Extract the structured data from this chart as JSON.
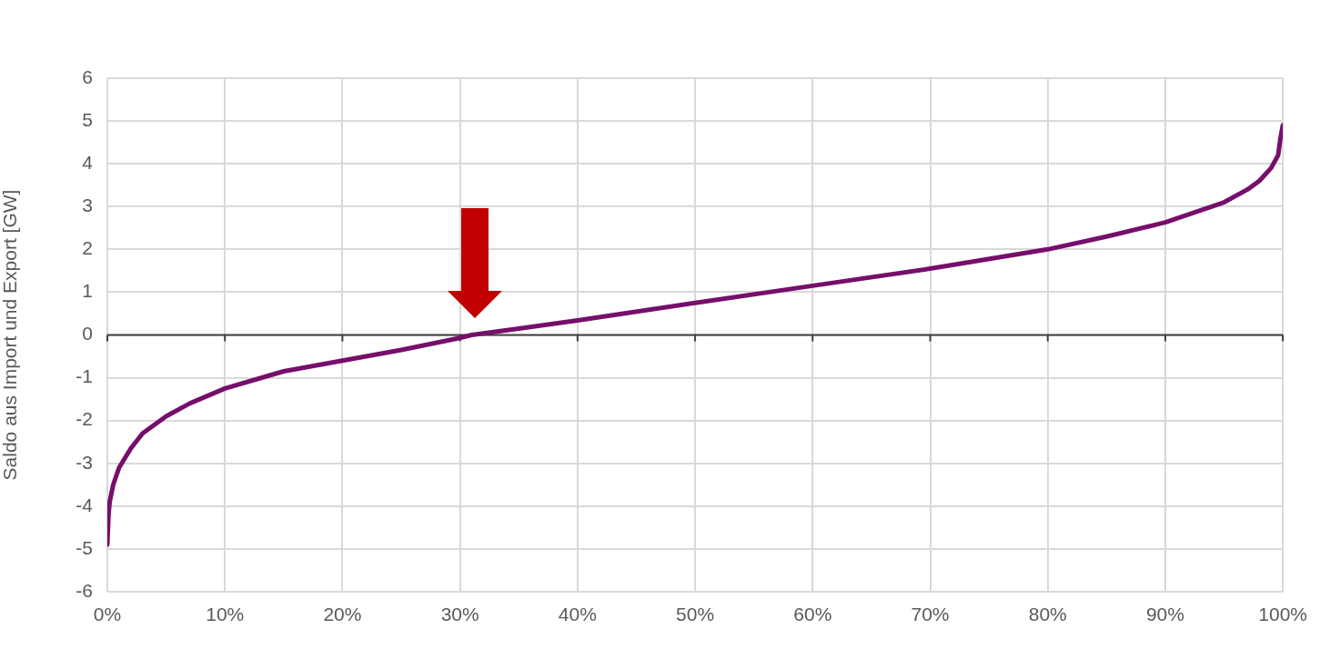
{
  "chart_data": {
    "type": "line",
    "ylabel": "Saldo aus Import und Export [GW]",
    "x": [
      0,
      0.1,
      0.2,
      0.5,
      1,
      2,
      3,
      5,
      7,
      10,
      15,
      20,
      25,
      30,
      31,
      35,
      40,
      50,
      60,
      70,
      80,
      85,
      90,
      95,
      97,
      98,
      99,
      99.6,
      99.8,
      100
    ],
    "series": [
      {
        "color": "#760e6b",
        "values": [
          -4.9,
          -4.2,
          -3.9,
          -3.5,
          -3.1,
          -2.65,
          -2.3,
          -1.9,
          -1.6,
          -1.25,
          -0.85,
          -0.6,
          -0.35,
          -0.07,
          0,
          0.15,
          0.34,
          0.75,
          1.15,
          1.55,
          2.0,
          2.3,
          2.63,
          3.1,
          3.4,
          3.6,
          3.9,
          4.2,
          4.6,
          4.9
        ]
      }
    ],
    "xlim": [
      0,
      100
    ],
    "xticks": [
      {
        "value": 0,
        "label": "0%"
      },
      {
        "value": 10,
        "label": "10%"
      },
      {
        "value": 20,
        "label": "20%"
      },
      {
        "value": 30,
        "label": "30%"
      },
      {
        "value": 40,
        "label": "40%"
      },
      {
        "value": 50,
        "label": "50%"
      },
      {
        "value": 60,
        "label": "60%"
      },
      {
        "value": 70,
        "label": "70%"
      },
      {
        "value": 80,
        "label": "80%"
      },
      {
        "value": 90,
        "label": "90%"
      },
      {
        "value": 100,
        "label": "100%"
      }
    ],
    "ylim": [
      -6,
      6
    ],
    "yticks": [
      -6,
      -5,
      -4,
      -3,
      -2,
      -1,
      0,
      1,
      2,
      3,
      4,
      5,
      6
    ],
    "ref_lines": [
      {
        "axis": "y",
        "value": 0,
        "color": "#404040"
      }
    ],
    "grid": true,
    "legend": false,
    "marker": "none",
    "line_style": "solid"
  }
}
